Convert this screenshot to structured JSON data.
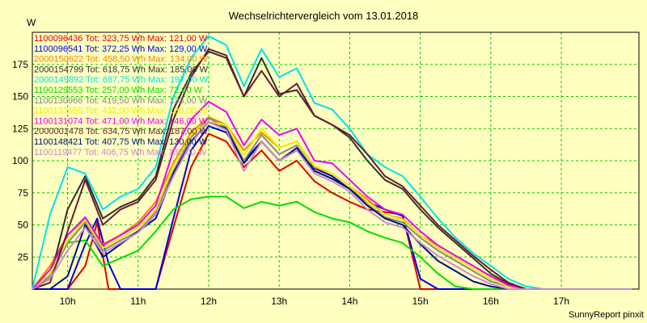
{
  "chart_data": {
    "type": "line",
    "title": "Wechselrichtervergleich vom 13.01.2018",
    "ylabel": "W",
    "ylim": [
      0,
      200
    ],
    "xlim": [
      9.5,
      18.1
    ],
    "yticks": [
      25,
      50,
      75,
      100,
      125,
      150,
      175
    ],
    "xticks": [
      {
        "v": 10,
        "label": "10h"
      },
      {
        "v": 11,
        "label": "11h"
      },
      {
        "v": 12,
        "label": "12h"
      },
      {
        "v": 13,
        "label": "13h"
      },
      {
        "v": 14,
        "label": "14h"
      },
      {
        "v": 15,
        "label": "15h"
      },
      {
        "v": 16,
        "label": "16h"
      },
      {
        "v": 17,
        "label": "17h"
      }
    ],
    "grid": true,
    "background": "#ffffc0",
    "grid_color": "#00cc00",
    "footer": "SunnyReport pinxit",
    "series": [
      {
        "name": "1100096436",
        "legend": "1100096436 Tot: 323,75 Wh Max: 121,00 W",
        "color": "#e00000",
        "x": [
          9.5,
          9.75,
          10,
          10.25,
          10.42,
          10.58,
          10.75,
          11,
          11.25,
          11.5,
          11.75,
          12,
          12.25,
          12.5,
          12.75,
          13,
          13.25,
          13.5,
          13.75,
          14,
          14.25,
          14.5,
          14.75,
          15,
          15.25,
          15.5,
          15.75,
          16,
          16.25,
          16.5,
          16.75,
          17,
          17.25,
          17.5,
          17.75,
          18
        ],
        "y": [
          0,
          0,
          0,
          18,
          52,
          0,
          0,
          0,
          0,
          48,
          95,
          121,
          115,
          95,
          108,
          92,
          100,
          84,
          75,
          68,
          62,
          60,
          58,
          0,
          0,
          0,
          0,
          0,
          0,
          0,
          0,
          0,
          0,
          0,
          0,
          0
        ]
      },
      {
        "name": "1100096541",
        "legend": "1100096541 Tot: 372,25 Wh Max: 129,00 W",
        "color": "#0000e0",
        "x": [
          9.5,
          9.75,
          10,
          10.25,
          10.42,
          10.58,
          10.75,
          11,
          11.25,
          11.5,
          11.75,
          12,
          12.25,
          12.5,
          12.75,
          13,
          13.25,
          13.5,
          13.75,
          14,
          14.25,
          14.5,
          14.75,
          15,
          15.25,
          15.5,
          15.75,
          16,
          16.25,
          16.5,
          16.75,
          17,
          17.25,
          17.5,
          17.75,
          18
        ],
        "y": [
          0,
          0,
          0,
          35,
          55,
          20,
          0,
          0,
          0,
          55,
          108,
          127,
          122,
          100,
          115,
          100,
          108,
          94,
          88,
          78,
          68,
          62,
          57,
          8,
          0,
          0,
          0,
          0,
          0,
          0,
          0,
          0,
          0,
          0,
          0,
          0
        ]
      },
      {
        "name": "2000150622",
        "legend": "2000150622 Tot: 458,50 Wh Max: 134,00 W",
        "color": "#ee8800",
        "x": [
          9.5,
          9.75,
          10,
          10.25,
          10.5,
          10.75,
          11,
          11.25,
          11.5,
          11.75,
          12,
          12.25,
          12.5,
          12.75,
          13,
          13.25,
          13.5,
          13.75,
          14,
          14.25,
          14.5,
          14.75,
          15,
          15.25,
          15.5,
          15.75,
          16,
          16.25,
          16.5,
          16.75,
          17,
          17.25,
          17.5,
          17.75,
          18
        ],
        "y": [
          0,
          18,
          42,
          55,
          35,
          42,
          52,
          68,
          98,
          122,
          134,
          128,
          108,
          122,
          110,
          115,
          95,
          90,
          80,
          70,
          58,
          55,
          42,
          34,
          26,
          18,
          10,
          4,
          0,
          0,
          0,
          0,
          0,
          0,
          0
        ]
      },
      {
        "name": "2000154799",
        "legend": "2000154799 Tot: 618,75 Wh Max: 185,00 W",
        "color": "#303030",
        "x": [
          9.5,
          9.75,
          10,
          10.25,
          10.5,
          10.75,
          11,
          11.25,
          11.5,
          11.75,
          12,
          12.25,
          12.5,
          12.75,
          13,
          13.25,
          13.5,
          13.75,
          14,
          14.25,
          14.5,
          14.75,
          15,
          15.25,
          15.5,
          15.75,
          16,
          16.25,
          16.5,
          16.75,
          17,
          17.25,
          17.5,
          17.75,
          18
        ],
        "y": [
          0,
          8,
          62,
          88,
          55,
          64,
          70,
          88,
          140,
          168,
          185,
          180,
          150,
          180,
          152,
          155,
          135,
          128,
          118,
          100,
          85,
          78,
          62,
          48,
          36,
          24,
          12,
          4,
          0,
          0,
          0,
          0,
          0,
          0,
          0
        ]
      },
      {
        "name": "2000149892",
        "legend": "2000149892 Tot: 687,75 Wh Max: 197,00 W",
        "color": "#00e0f0",
        "x": [
          9.5,
          9.75,
          10,
          10.25,
          10.5,
          10.75,
          11,
          11.25,
          11.5,
          11.75,
          12,
          12.25,
          12.5,
          12.75,
          13,
          13.25,
          13.5,
          13.75,
          14,
          14.25,
          14.5,
          14.75,
          15,
          15.25,
          15.5,
          15.75,
          16,
          16.25,
          16.5,
          16.75,
          17,
          17.25,
          17.5,
          17.75,
          18
        ],
        "y": [
          0,
          58,
          95,
          90,
          62,
          72,
          78,
          95,
          150,
          180,
          197,
          190,
          158,
          187,
          165,
          172,
          145,
          140,
          125,
          105,
          95,
          88,
          72,
          55,
          40,
          28,
          18,
          8,
          2,
          0,
          0,
          0,
          0,
          0,
          0
        ]
      },
      {
        "name": "1100129553",
        "legend": "1100129553 Tot: 257,00 Wh Max: 72,00 W",
        "color": "#00dd00",
        "x": [
          9.5,
          9.75,
          10,
          10.25,
          10.5,
          10.75,
          11,
          11.25,
          11.5,
          11.75,
          12,
          12.25,
          12.5,
          12.75,
          13,
          13.25,
          13.5,
          13.75,
          14,
          14.25,
          14.5,
          14.75,
          15,
          15.25,
          15.5,
          15.75,
          16,
          16.25,
          16.5,
          16.75,
          17,
          17.25,
          17.5,
          17.75,
          18
        ],
        "y": [
          0,
          10,
          36,
          38,
          18,
          24,
          30,
          45,
          62,
          70,
          72,
          72,
          63,
          68,
          65,
          68,
          60,
          55,
          52,
          45,
          40,
          36,
          25,
          12,
          2,
          0,
          0,
          0,
          0,
          0,
          0,
          0,
          0,
          0,
          0
        ]
      },
      {
        "name": "1100130966",
        "legend": "1100130966 Tot: 419,50 Wh Max: 133,00 W",
        "color": "#888888",
        "x": [
          9.5,
          9.75,
          10,
          10.25,
          10.5,
          10.75,
          11,
          11.25,
          11.5,
          11.75,
          12,
          12.25,
          12.5,
          12.75,
          13,
          13.25,
          13.5,
          13.75,
          14,
          14.25,
          14.5,
          14.75,
          15,
          15.25,
          15.5,
          15.75,
          16,
          16.25,
          16.5,
          16.75,
          17,
          17.25,
          17.5,
          17.75,
          18
        ],
        "y": [
          0,
          10,
          36,
          52,
          30,
          38,
          45,
          60,
          92,
          118,
          133,
          126,
          100,
          120,
          105,
          112,
          92,
          86,
          78,
          66,
          56,
          52,
          40,
          30,
          22,
          14,
          6,
          2,
          0,
          0,
          0,
          0,
          0,
          0,
          0
        ]
      },
      {
        "name": "1100131055",
        "legend": "1100131055 Tot: 432,00 Wh Max: 130,00 W",
        "color": "#eeee00",
        "x": [
          9.5,
          9.75,
          10,
          10.25,
          10.5,
          10.75,
          11,
          11.25,
          11.5,
          11.75,
          12,
          12.25,
          12.5,
          12.75,
          13,
          13.25,
          13.5,
          13.75,
          14,
          14.25,
          14.5,
          14.75,
          15,
          15.25,
          15.5,
          15.75,
          16,
          16.25,
          16.5,
          16.75,
          17,
          17.25,
          17.5,
          17.75,
          18
        ],
        "y": [
          0,
          12,
          38,
          54,
          32,
          40,
          48,
          62,
          96,
          120,
          130,
          128,
          104,
          125,
          110,
          115,
          96,
          90,
          80,
          68,
          58,
          54,
          42,
          32,
          24,
          16,
          8,
          2,
          0,
          0,
          0,
          0,
          0,
          0,
          0
        ]
      },
      {
        "name": "1100131074",
        "legend": "1100131074 Tot: 471,00 Wh Max: 146,00 W",
        "color": "#ee00ee",
        "x": [
          9.5,
          9.75,
          10,
          10.25,
          10.5,
          10.75,
          11,
          11.25,
          11.5,
          11.75,
          12,
          12.25,
          12.5,
          12.75,
          13,
          13.25,
          13.5,
          13.75,
          14,
          14.25,
          14.5,
          14.75,
          15,
          15.25,
          15.5,
          15.75,
          16,
          16.25,
          16.5,
          16.75,
          17,
          17.25,
          17.5,
          17.75,
          18
        ],
        "y": [
          0,
          15,
          42,
          56,
          34,
          42,
          50,
          65,
          108,
          132,
          146,
          138,
          112,
          132,
          120,
          125,
          100,
          98,
          85,
          72,
          62,
          58,
          45,
          34,
          26,
          18,
          10,
          3,
          0,
          0,
          0,
          0,
          0,
          0,
          0
        ]
      },
      {
        "name": "2000001478",
        "legend": "2000001478 Tot: 634,75 Wh Max: 187,00 W",
        "color": "#701830",
        "x": [
          9.5,
          9.75,
          10,
          10.25,
          10.5,
          10.75,
          11,
          11.25,
          11.5,
          11.75,
          12,
          12.25,
          12.5,
          12.75,
          13,
          13.25,
          13.5,
          13.75,
          14,
          14.25,
          14.5,
          14.75,
          15,
          15.25,
          15.5,
          15.75,
          16,
          16.25,
          16.5,
          16.75,
          17,
          17.25,
          17.5,
          17.75,
          18
        ],
        "y": [
          0,
          5,
          45,
          85,
          50,
          62,
          68,
          85,
          132,
          165,
          187,
          182,
          150,
          170,
          150,
          160,
          135,
          128,
          120,
          105,
          88,
          80,
          65,
          50,
          38,
          26,
          15,
          5,
          0,
          0,
          0,
          0,
          0,
          0,
          0
        ]
      },
      {
        "name": "1100148421",
        "legend": "1100148421 Tot: 407,75 Wh Max: 130,00 W",
        "color": "#001080",
        "x": [
          9.5,
          9.75,
          10,
          10.25,
          10.5,
          10.75,
          11,
          11.25,
          11.5,
          11.75,
          12,
          12.25,
          12.5,
          12.75,
          13,
          13.25,
          13.5,
          13.75,
          14,
          14.25,
          14.5,
          14.75,
          15,
          15.25,
          15.5,
          15.75,
          16,
          16.25,
          16.5,
          16.75,
          17,
          17.25,
          17.5,
          17.75,
          18
        ],
        "y": [
          0,
          0,
          10,
          50,
          25,
          35,
          45,
          55,
          90,
          115,
          130,
          125,
          98,
          115,
          100,
          110,
          92,
          86,
          78,
          65,
          55,
          50,
          35,
          22,
          14,
          6,
          2,
          0,
          0,
          0,
          0,
          0,
          0,
          0,
          0
        ]
      },
      {
        "name": "1100119477",
        "legend": "1100119477 Tot: 406,75 Wh Max: 130,00 W",
        "color": "#cc88cc",
        "x": [
          9.5,
          9.75,
          10,
          10.25,
          10.5,
          10.75,
          11,
          11.25,
          11.5,
          11.75,
          12,
          12.25,
          12.5,
          12.75,
          13,
          13.25,
          13.5,
          13.75,
          14,
          14.25,
          14.5,
          14.75,
          15,
          15.25,
          15.5,
          15.75,
          16,
          16.25,
          16.5,
          16.75,
          17,
          17.25,
          17.5,
          17.75,
          18
        ],
        "y": [
          0,
          8,
          30,
          48,
          28,
          36,
          44,
          58,
          88,
          114,
          130,
          124,
          92,
          115,
          100,
          108,
          90,
          84,
          76,
          62,
          52,
          48,
          36,
          26,
          18,
          10,
          4,
          0,
          0,
          0,
          0,
          0,
          0,
          0,
          0
        ]
      }
    ]
  }
}
